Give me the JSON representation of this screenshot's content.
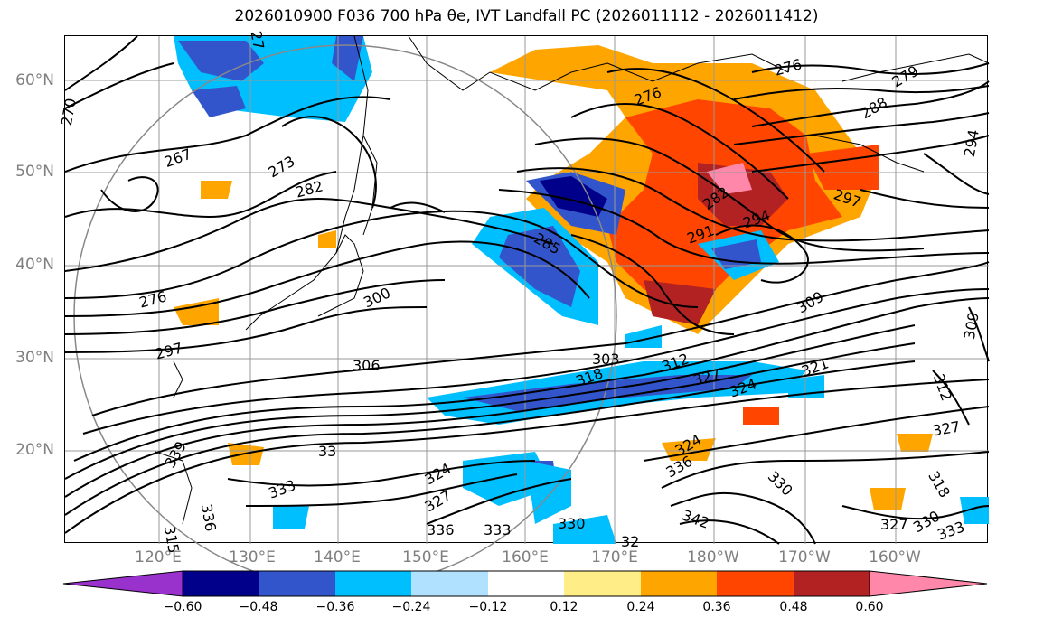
{
  "title": "2026010900 F036 700 hPa θe, IVT Landfall PC (2026011112 - 2026011412)",
  "lat_labels": [
    "60°N",
    "50°N",
    "40°N",
    "30°N",
    "20°N"
  ],
  "lon_labels": [
    "120°E",
    "130°E",
    "140°E",
    "150°E",
    "160°E",
    "170°E",
    "180°W",
    "170°W",
    "160°W"
  ],
  "colorbar": {
    "labels": [
      "−0.60",
      "−0.48",
      "−0.36",
      "−0.24",
      "−0.12",
      "0.12",
      "0.24",
      "0.36",
      "0.48",
      "0.60"
    ],
    "colors": [
      "#9932cc",
      "#00008b",
      "#3355cc",
      "#00bfff",
      "#b0e2ff",
      "#ffffff",
      "#ffee88",
      "#ffa500",
      "#ff4500",
      "#b22222",
      "#ff88aa"
    ]
  },
  "contour_labels": [
    {
      "text": "270"
    },
    {
      "text": "267"
    },
    {
      "text": "273"
    },
    {
      "text": "282"
    },
    {
      "text": "276"
    },
    {
      "text": "276"
    },
    {
      "text": "279"
    },
    {
      "text": "288"
    },
    {
      "text": "294"
    },
    {
      "text": "297"
    },
    {
      "text": "282"
    },
    {
      "text": "291"
    },
    {
      "text": "294"
    },
    {
      "text": "285"
    },
    {
      "text": "276"
    },
    {
      "text": "297"
    },
    {
      "text": "300"
    },
    {
      "text": "306"
    },
    {
      "text": "303"
    },
    {
      "text": "309"
    },
    {
      "text": "318"
    },
    {
      "text": "312"
    },
    {
      "text": "327"
    },
    {
      "text": "324"
    },
    {
      "text": "321"
    },
    {
      "text": "309"
    },
    {
      "text": "312"
    },
    {
      "text": "339"
    },
    {
      "text": "333"
    },
    {
      "text": "324"
    },
    {
      "text": "327"
    },
    {
      "text": "336"
    },
    {
      "text": "333"
    },
    {
      "text": "330"
    },
    {
      "text": "324"
    },
    {
      "text": "336"
    },
    {
      "text": "342"
    },
    {
      "text": "330"
    },
    {
      "text": "327"
    },
    {
      "text": "330"
    },
    {
      "text": "333"
    },
    {
      "text": "327"
    },
    {
      "text": "318"
    },
    {
      "text": "336"
    },
    {
      "text": "33"
    },
    {
      "text": "32"
    },
    {
      "text": "27"
    },
    {
      "text": "315"
    }
  ]
}
